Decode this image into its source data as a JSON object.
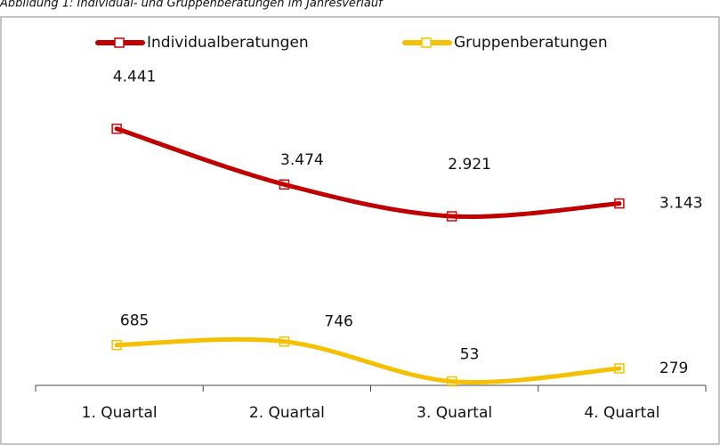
{
  "chart_data": {
    "type": "line",
    "title": "Abbildung 1: Individual- und Gruppenberatungen im Jahresverlauf",
    "categories": [
      "1. Quartal",
      "2. Quartal",
      "3. Quartal",
      "4. Quartal"
    ],
    "series": [
      {
        "name": "Individualberatungen",
        "color": "#c00000",
        "values": [
          4441,
          3474,
          2921,
          3143
        ],
        "value_labels": [
          "4.441",
          "3.474",
          "2.921",
          "3.143"
        ]
      },
      {
        "name": "Gruppenberatungen",
        "color": "#f5c000",
        "values": [
          685,
          746,
          53,
          279
        ],
        "value_labels": [
          "685",
          "746",
          "53",
          "279"
        ]
      }
    ],
    "ylim": [
      0,
      5000
    ],
    "legend": "top"
  }
}
